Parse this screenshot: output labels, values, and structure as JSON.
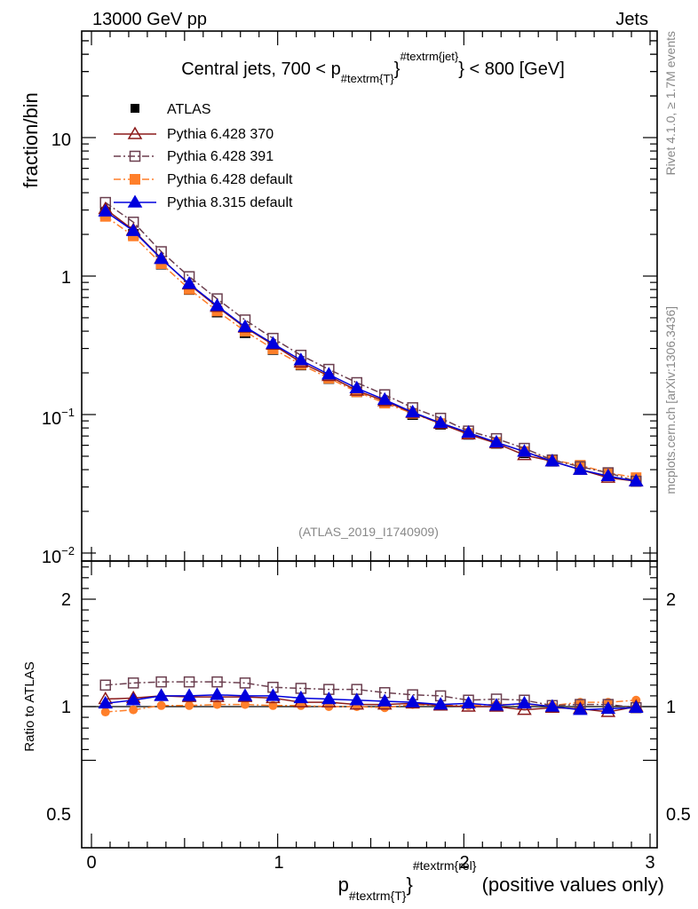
{
  "header": {
    "left": "13000 GeV pp",
    "right": "Jets"
  },
  "side_labels": {
    "rivet": "Rivet 4.1.0, ≥ 1.7M events",
    "mcplots": "mcplots.cern.ch [arXiv:1306.3436]"
  },
  "chart_data": {
    "type": "line",
    "title": "Central jets, 700 < p_{#textrm{T}}^{#textrm{jet}} < 800 [GeV]",
    "title_parts": {
      "pre": "Central jets, 700 < p",
      "sub": "#textrm{T}",
      "sup": "#textrm{jet}",
      "post": " < 800 [GeV]"
    },
    "analysis_tag": "(ATLAS_2019_I1740909)",
    "ylabel": "fraction/bin",
    "ratio_ylabel": "Ratio to ATLAS",
    "xlabel_parts": {
      "pre": "p",
      "sub": "#textrm{T}",
      "sup": "#textrm{rel}",
      "post": " (positive values only)"
    },
    "xlim": [
      0,
      3
    ],
    "ylim": [
      0.01,
      50
    ],
    "yscale": "log",
    "ratio_ylim": [
      0.4,
      2.4
    ],
    "x_ticks": [
      "0",
      "1",
      "2",
      "3"
    ],
    "y_ticks": [
      {
        "mant": "10",
        "exp": "−2",
        "value": 0.01
      },
      {
        "mant": "10",
        "exp": "−1",
        "value": 0.1
      },
      {
        "mant": "1",
        "exp": "",
        "value": 1
      },
      {
        "mant": "10",
        "exp": "",
        "value": 10
      }
    ],
    "ratio_ticks": [
      "0.5",
      "1",
      "2"
    ],
    "x": [
      0.075,
      0.225,
      0.375,
      0.525,
      0.675,
      0.825,
      0.975,
      1.125,
      1.275,
      1.425,
      1.575,
      1.725,
      1.875,
      2.025,
      2.175,
      2.325,
      2.475,
      2.625,
      2.775,
      2.925
    ],
    "data": {
      "name": "ATLAS",
      "values": [
        2.85,
        2.0,
        1.22,
        0.8,
        0.55,
        0.39,
        0.295,
        0.228,
        0.182,
        0.146,
        0.122,
        0.1,
        0.085,
        0.072,
        0.062,
        0.053,
        0.046,
        0.041,
        0.037,
        0.033
      ]
    },
    "series": [
      {
        "name": "Pythia 6.428 370",
        "color": "#8b1a1a",
        "marker": "triangle-open",
        "dash": "solid",
        "values": [
          3.05,
          2.15,
          1.34,
          0.87,
          0.6,
          0.425,
          0.32,
          0.238,
          0.19,
          0.149,
          0.125,
          0.103,
          0.086,
          0.072,
          0.062,
          0.051,
          0.046,
          0.04,
          0.035,
          0.033
        ],
        "ratio": [
          1.07,
          1.08,
          1.1,
          1.09,
          1.09,
          1.09,
          1.08,
          1.04,
          1.04,
          1.02,
          1.02,
          1.03,
          1.01,
          1.0,
          1.0,
          0.97,
          0.99,
          0.98,
          0.95,
          1.0
        ]
      },
      {
        "name": "Pythia 6.428 391",
        "color": "#6b3f4f",
        "marker": "square-open",
        "dash": "dashdot",
        "values": [
          3.4,
          2.45,
          1.5,
          0.99,
          0.685,
          0.482,
          0.355,
          0.268,
          0.212,
          0.17,
          0.139,
          0.112,
          0.094,
          0.076,
          0.067,
          0.057,
          0.047,
          0.042,
          0.038,
          0.033
        ],
        "ratio": [
          1.2,
          1.22,
          1.23,
          1.23,
          1.23,
          1.22,
          1.18,
          1.17,
          1.16,
          1.16,
          1.13,
          1.11,
          1.1,
          1.06,
          1.07,
          1.06,
          1.01,
          1.02,
          1.02,
          0.99
        ]
      },
      {
        "name": "Pythia 6.428 default",
        "color": "#ff7f2a",
        "marker": "square-filled",
        "dash": "dashdot",
        "values": [
          2.7,
          1.95,
          1.23,
          0.805,
          0.56,
          0.4,
          0.298,
          0.23,
          0.183,
          0.146,
          0.121,
          0.102,
          0.086,
          0.073,
          0.063,
          0.054,
          0.047,
          0.043,
          0.038,
          0.035
        ],
        "ratio": [
          0.95,
          0.97,
          1.01,
          1.01,
          1.02,
          1.02,
          1.01,
          1.01,
          1.0,
          1.0,
          0.99,
          1.02,
          1.01,
          1.01,
          1.02,
          1.02,
          1.01,
          1.04,
          1.04,
          1.06
        ]
      },
      {
        "name": "Pythia 8.315 default",
        "color": "#0000dd",
        "marker": "triangle-filled",
        "dash": "solid",
        "values": [
          2.93,
          2.12,
          1.33,
          0.88,
          0.61,
          0.43,
          0.325,
          0.247,
          0.195,
          0.155,
          0.128,
          0.104,
          0.087,
          0.074,
          0.063,
          0.054,
          0.046,
          0.04,
          0.036,
          0.033
        ],
        "ratio": [
          1.03,
          1.06,
          1.1,
          1.1,
          1.11,
          1.1,
          1.1,
          1.08,
          1.07,
          1.06,
          1.05,
          1.04,
          1.02,
          1.03,
          1.01,
          1.03,
          1.0,
          0.97,
          0.98,
          0.99
        ]
      }
    ]
  }
}
